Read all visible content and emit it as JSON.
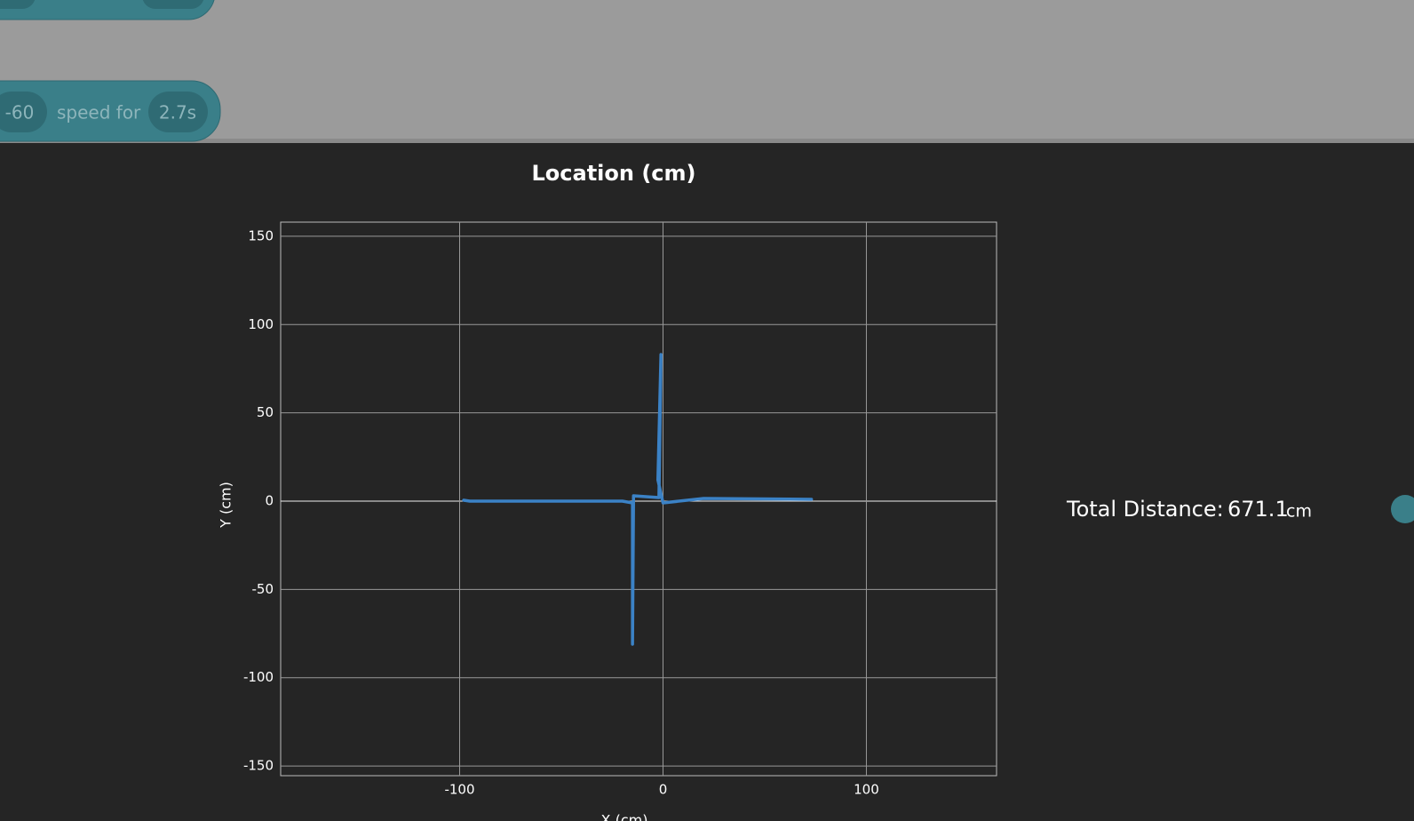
{
  "block": {
    "amount": "-60",
    "label": "speed for",
    "duration": "2.7s"
  },
  "total_distance": {
    "label": "Total Distance:",
    "value": 671.1,
    "unit": "cm"
  },
  "chart_data": {
    "type": "line",
    "title": "Location (cm)",
    "x_label": "X (cm)",
    "y_label": "Y (cm)",
    "x": [
      -98,
      -95,
      -20,
      -15,
      -15,
      -14.5,
      -2,
      -1,
      -2.5,
      0,
      20,
      73
    ],
    "values": [
      0.5,
      0,
      0,
      -1,
      -81,
      3,
      2,
      83,
      12,
      -1,
      1.5,
      1
    ],
    "color": "#3b82c6",
    "xlim": [
      -188,
      164
    ],
    "xticks": [
      -100,
      0,
      100
    ],
    "ylim": [
      -155.5,
      158
    ],
    "yticks": [
      -150,
      -100,
      -50,
      0,
      50,
      100,
      150
    ],
    "grid": true
  }
}
